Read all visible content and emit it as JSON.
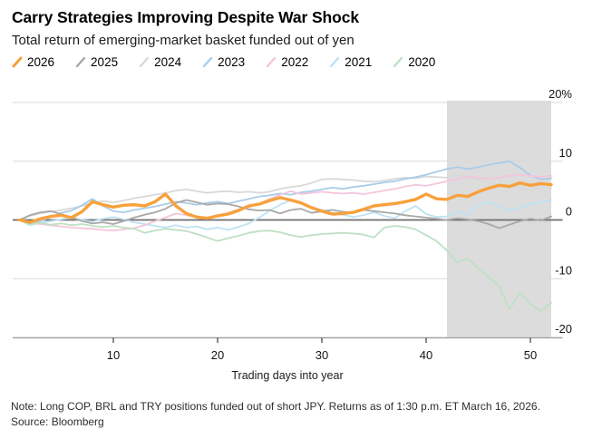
{
  "chart_data": {
    "type": "line",
    "title": "Carry Strategies Improving Despite War Shock",
    "subtitle": "Total return of emerging-market basket funded out of yen",
    "xlabel": "Trading days into year",
    "x_ticks": [
      10,
      20,
      30,
      40,
      50
    ],
    "y_ticks": [
      {
        "label": "20%",
        "value": 20
      },
      {
        "label": "10",
        "value": 10
      },
      {
        "label": "0",
        "value": 0
      },
      {
        "label": "-10",
        "value": -10
      },
      {
        "label": "-20",
        "value": -20
      }
    ],
    "xlim": [
      1,
      52
    ],
    "ylim": [
      -20,
      20
    ],
    "x_unit": "trading day index, 1 to 52",
    "grid": "horizontal",
    "legend_position": "top-left",
    "zero_line_color": "#6e6e6e",
    "gridline_color": "#d8d8d8",
    "shaded_region": {
      "start_day": 42,
      "end_day": 52,
      "color": "#dcdcdc"
    },
    "draw_order": [
      "2024",
      "2023",
      "2021",
      "2022",
      "2020",
      "2025",
      "2026"
    ],
    "series": [
      {
        "name": "2026",
        "color": "#f7a13c",
        "width": 3.4,
        "values": [
          0,
          -0.4,
          0.2,
          0.6,
          0.8,
          0.4,
          1.4,
          3.1,
          2.6,
          2.2,
          2.5,
          2.6,
          2.4,
          3.1,
          4.4,
          2.4,
          1.1,
          0.5,
          0.3,
          0.7,
          1.0,
          1.6,
          2.4,
          2.7,
          3.3,
          3.8,
          3.4,
          2.9,
          2.1,
          1.5,
          1.0,
          1.1,
          1.3,
          1.8,
          2.4,
          2.6,
          2.8,
          3.1,
          3.5,
          4.4,
          3.6,
          3.5,
          4.2,
          4.0,
          4.8,
          5.4,
          5.9,
          5.7,
          6.3,
          5.9,
          6.2,
          6.0
        ]
      },
      {
        "name": "2025",
        "color": "#a8a8a8",
        "width": 1.8,
        "values": [
          0,
          0.8,
          1.3,
          1.5,
          1.0,
          0.4,
          -0.2,
          -0.6,
          -0.4,
          -0.7,
          -0.2,
          0.4,
          0.9,
          1.3,
          1.9,
          2.9,
          3.4,
          3.0,
          2.6,
          2.8,
          2.7,
          2.3,
          1.8,
          1.6,
          1.7,
          1.1,
          1.7,
          1.9,
          1.2,
          1.5,
          1.7,
          1.4,
          1.2,
          1.7,
          1.5,
          1.3,
          1.1,
          0.8,
          0.6,
          0.4,
          0.2,
          0,
          0.3,
          0.1,
          -0.2,
          -0.7,
          -1.4,
          -0.8,
          -0.2,
          0.2,
          -0.1,
          0.6
        ]
      },
      {
        "name": "2024",
        "color": "#d9d9d9",
        "width": 1.8,
        "values": [
          0,
          0.7,
          1.1,
          1.4,
          1.7,
          2.0,
          2.4,
          2.9,
          3.2,
          3.0,
          3.3,
          3.7,
          4.0,
          4.3,
          4.6,
          5.0,
          5.2,
          4.9,
          4.6,
          4.8,
          4.9,
          4.7,
          4.8,
          4.6,
          4.8,
          5.3,
          5.6,
          5.8,
          6.3,
          6.9,
          7.0,
          6.9,
          6.8,
          6.6,
          6.5,
          6.7,
          7.0,
          7.2,
          7.1,
          7.4,
          7.3,
          7.2,
          7.6,
          7.3,
          6.9,
          6.4,
          5.9,
          5.6,
          5.3,
          5.2,
          5.5,
          5.4
        ]
      },
      {
        "name": "2023",
        "color": "#a9cce9",
        "width": 1.8,
        "values": [
          0,
          -0.6,
          -0.2,
          0.5,
          1.2,
          1.6,
          2.5,
          3.6,
          2.4,
          1.5,
          1.3,
          1.7,
          2.0,
          2.3,
          2.7,
          3.1,
          2.9,
          2.6,
          2.9,
          3.1,
          2.8,
          3.2,
          3.6,
          4.0,
          4.2,
          4.5,
          4.3,
          4.7,
          4.9,
          5.2,
          5.5,
          5.3,
          5.6,
          5.8,
          6.1,
          6.4,
          6.6,
          7.0,
          7.3,
          7.7,
          8.2,
          8.7,
          9.0,
          8.7,
          9.0,
          9.4,
          9.7,
          10.0,
          8.9,
          7.6,
          6.9,
          7.1
        ]
      },
      {
        "name": "2022",
        "color": "#f4c5dc",
        "width": 1.8,
        "values": [
          0,
          -0.5,
          -0.7,
          -0.9,
          -1.1,
          -1.3,
          -1.4,
          -1.5,
          -1.7,
          -1.8,
          -1.6,
          -1.4,
          -0.9,
          -0.2,
          0.4,
          1.1,
          0.8,
          0.5,
          0.4,
          0.8,
          1.2,
          1.8,
          2.2,
          2.7,
          3.6,
          4.3,
          4.9,
          4.4,
          4.6,
          4.8,
          4.6,
          4.5,
          4.6,
          4.4,
          4.7,
          5.0,
          5.3,
          5.7,
          6.0,
          5.8,
          6.2,
          6.6,
          7.0,
          7.4,
          7.2,
          7.0,
          7.2,
          7.5,
          7.7,
          7.5,
          7.3,
          7.5
        ]
      },
      {
        "name": "2021",
        "color": "#bee2f2",
        "width": 1.8,
        "values": [
          0,
          -0.9,
          -0.5,
          -0.2,
          0.1,
          0.4,
          0,
          -0.3,
          0.2,
          0.5,
          0.1,
          -0.4,
          -0.7,
          -1.0,
          -1.3,
          -0.9,
          -1.3,
          -1.1,
          -1.6,
          -1.3,
          -1.7,
          -1.2,
          -0.6,
          0.4,
          1.6,
          2.6,
          3.3,
          2.8,
          2.2,
          1.7,
          1.2,
          0.9,
          0.5,
          0.8,
          1.3,
          0.7,
          0.3,
          1.5,
          2.4,
          1.0,
          0.5,
          0.6,
          1.4,
          0.8,
          2.7,
          3.0,
          2.3,
          1.6,
          2.1,
          2.7,
          3.0,
          3.4
        ]
      },
      {
        "name": "2020",
        "color": "#bfe0c3",
        "width": 1.8,
        "values": [
          0,
          -0.7,
          -0.5,
          -0.8,
          -0.6,
          -0.9,
          -0.7,
          -1.0,
          -1.2,
          -1.0,
          -1.3,
          -1.5,
          -2.2,
          -1.8,
          -1.5,
          -1.7,
          -1.9,
          -2.4,
          -3.0,
          -3.6,
          -3.1,
          -2.7,
          -2.2,
          -1.9,
          -1.8,
          -2.1,
          -2.6,
          -2.9,
          -2.6,
          -2.4,
          -2.3,
          -2.2,
          -2.3,
          -2.5,
          -3.0,
          -1.3,
          -1.0,
          -1.2,
          -1.6,
          -2.6,
          -3.6,
          -5.2,
          -7.2,
          -6.6,
          -8.2,
          -9.7,
          -11.3,
          -15.2,
          -12.4,
          -14.3,
          -15.5,
          -14.1
        ]
      }
    ]
  },
  "footer": {
    "note": "Note: Long COP, BRL and TRY positions funded out of short JPY. Returns as of 1:30 p.m. ET March 16, 2026.",
    "source": "Source: Bloomberg"
  }
}
